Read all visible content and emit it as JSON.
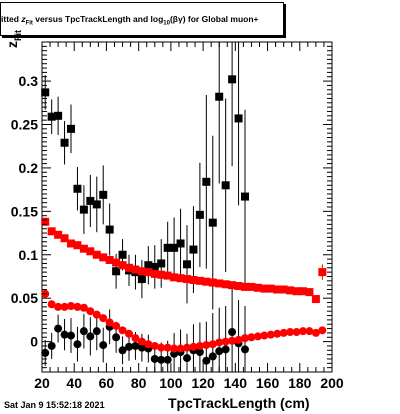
{
  "chart_data": {
    "type": "scatter",
    "title": "itted  z versus TpcTrackLength and log10(βγ) for Global muon+",
    "title_parts": {
      "pre": "itted  ",
      "z": "z",
      "z_sub": "Fit",
      "mid": " versus TpcTrackLength and log",
      "log_sub": "10",
      "post": "(βγ) for Global muon+"
    },
    "xlabel": "TpcTrackLength (cm)",
    "ylabel": "z",
    "ylabel_sub": "Fit",
    "xlim": [
      20,
      200
    ],
    "ylim": [
      -0.035,
      0.345
    ],
    "xticks": [
      20,
      40,
      60,
      80,
      100,
      120,
      140,
      160,
      180,
      200
    ],
    "yticks": [
      0,
      0.05,
      0.1,
      0.15,
      0.2,
      0.25,
      0.3
    ],
    "ytick_labels": [
      "0",
      "0.05",
      "0.1",
      "0.15",
      "0.2",
      "0.25",
      "0.3"
    ],
    "grid": false,
    "series": [
      {
        "color": "#000000",
        "points": [
          {
            "x": 22,
            "y": 0.287,
            "err": 0.02
          },
          {
            "x": 26,
            "y": 0.259,
            "err": 0.02
          },
          {
            "x": 30,
            "y": 0.26,
            "err": 0.022
          },
          {
            "x": 34,
            "y": 0.229,
            "err": 0.025
          },
          {
            "x": 38,
            "y": 0.245,
            "err": 0.028
          },
          {
            "x": 42,
            "y": 0.176,
            "err": 0.025
          },
          {
            "x": 46,
            "y": 0.152,
            "err": 0.028
          },
          {
            "x": 50,
            "y": 0.162,
            "err": 0.03
          },
          {
            "x": 54,
            "y": 0.158,
            "err": 0.032
          },
          {
            "x": 58,
            "y": 0.169,
            "err": 0.034
          },
          {
            "x": 62,
            "y": 0.129,
            "err": 0.03
          },
          {
            "x": 66,
            "y": 0.081,
            "err": 0.02
          },
          {
            "x": 70,
            "y": 0.1,
            "err": 0.018
          },
          {
            "x": 74,
            "y": 0.082,
            "err": 0.018
          },
          {
            "x": 78,
            "y": 0.08,
            "err": 0.02
          },
          {
            "x": 82,
            "y": 0.072,
            "err": 0.022
          },
          {
            "x": 86,
            "y": 0.088,
            "err": 0.022
          },
          {
            "x": 90,
            "y": 0.086,
            "err": 0.025
          },
          {
            "x": 94,
            "y": 0.09,
            "err": 0.028
          },
          {
            "x": 98,
            "y": 0.108,
            "err": 0.03
          },
          {
            "x": 102,
            "y": 0.108,
            "err": 0.035
          },
          {
            "x": 106,
            "y": 0.113,
            "err": 0.04
          },
          {
            "x": 110,
            "y": 0.089,
            "err": 0.045
          },
          {
            "x": 114,
            "y": 0.106,
            "err": 0.05
          },
          {
            "x": 118,
            "y": 0.146,
            "err": 0.06
          },
          {
            "x": 122,
            "y": 0.184,
            "err": 0.1
          },
          {
            "x": 126,
            "y": 0.137,
            "err": 0.1
          },
          {
            "x": 130,
            "y": 0.282,
            "err": 0.1
          },
          {
            "x": 134,
            "y": 0.18,
            "err": 0.1
          },
          {
            "x": 138,
            "y": 0.302,
            "err": 0.1
          },
          {
            "x": 142,
            "y": 0.257,
            "err": 0.1
          },
          {
            "x": 146,
            "y": 0.167,
            "err": 0.1
          }
        ]
      },
      {
        "color": "#000000",
        "points": [
          {
            "x": 22,
            "y": -0.013,
            "err": 0.015
          },
          {
            "x": 26,
            "y": -0.005,
            "err": 0.015
          },
          {
            "x": 30,
            "y": 0.015,
            "err": 0.016
          },
          {
            "x": 34,
            "y": 0.008,
            "err": 0.018
          },
          {
            "x": 38,
            "y": 0.007,
            "err": 0.02
          },
          {
            "x": 42,
            "y": -0.003,
            "err": 0.02
          },
          {
            "x": 46,
            "y": 0.012,
            "err": 0.02
          },
          {
            "x": 50,
            "y": 0.006,
            "err": 0.022
          },
          {
            "x": 54,
            "y": 0.012,
            "err": 0.022
          },
          {
            "x": 58,
            "y": -0.004,
            "err": 0.02
          },
          {
            "x": 62,
            "y": 0.017,
            "err": 0.02
          },
          {
            "x": 66,
            "y": 0.005,
            "err": 0.018
          },
          {
            "x": 70,
            "y": -0.01,
            "err": 0.016
          },
          {
            "x": 74,
            "y": -0.006,
            "err": 0.016
          },
          {
            "x": 78,
            "y": -0.005,
            "err": 0.016
          },
          {
            "x": 82,
            "y": -0.007,
            "err": 0.016
          },
          {
            "x": 86,
            "y": -0.008,
            "err": 0.016
          },
          {
            "x": 90,
            "y": -0.02,
            "err": 0.018
          },
          {
            "x": 94,
            "y": -0.021,
            "err": 0.02
          },
          {
            "x": 98,
            "y": -0.021,
            "err": 0.022
          },
          {
            "x": 102,
            "y": -0.014,
            "err": 0.024
          },
          {
            "x": 106,
            "y": -0.012,
            "err": 0.026
          },
          {
            "x": 110,
            "y": -0.019,
            "err": 0.028
          },
          {
            "x": 114,
            "y": -0.01,
            "err": 0.03
          },
          {
            "x": 118,
            "y": -0.012,
            "err": 0.034
          },
          {
            "x": 122,
            "y": -0.022,
            "err": 0.045
          },
          {
            "x": 126,
            "y": -0.017,
            "err": 0.05
          },
          {
            "x": 130,
            "y": -0.011,
            "err": 0.05
          },
          {
            "x": 134,
            "y": -0.009,
            "err": 0.05
          },
          {
            "x": 138,
            "y": 0.011,
            "err": 0.05
          },
          {
            "x": 142,
            "y": -0.002,
            "err": 0.05
          },
          {
            "x": 146,
            "y": -0.009,
            "err": 0.05
          }
        ]
      },
      {
        "color": "#ff0000",
        "points": [
          {
            "x": 22,
            "y": 0.138
          },
          {
            "x": 26,
            "y": 0.127
          },
          {
            "x": 30,
            "y": 0.123
          },
          {
            "x": 34,
            "y": 0.119
          },
          {
            "x": 38,
            "y": 0.113
          },
          {
            "x": 42,
            "y": 0.111
          },
          {
            "x": 46,
            "y": 0.107
          },
          {
            "x": 50,
            "y": 0.104
          },
          {
            "x": 54,
            "y": 0.1
          },
          {
            "x": 58,
            "y": 0.097
          },
          {
            "x": 62,
            "y": 0.094
          },
          {
            "x": 66,
            "y": 0.091
          },
          {
            "x": 70,
            "y": 0.088
          },
          {
            "x": 74,
            "y": 0.085
          },
          {
            "x": 78,
            "y": 0.083
          },
          {
            "x": 82,
            "y": 0.081
          },
          {
            "x": 86,
            "y": 0.08
          },
          {
            "x": 90,
            "y": 0.078
          },
          {
            "x": 94,
            "y": 0.077
          },
          {
            "x": 98,
            "y": 0.076
          },
          {
            "x": 102,
            "y": 0.074
          },
          {
            "x": 106,
            "y": 0.073
          },
          {
            "x": 110,
            "y": 0.072
          },
          {
            "x": 114,
            "y": 0.071
          },
          {
            "x": 118,
            "y": 0.07
          },
          {
            "x": 122,
            "y": 0.069
          },
          {
            "x": 126,
            "y": 0.068
          },
          {
            "x": 130,
            "y": 0.067
          },
          {
            "x": 134,
            "y": 0.066
          },
          {
            "x": 138,
            "y": 0.065
          },
          {
            "x": 142,
            "y": 0.064
          },
          {
            "x": 146,
            "y": 0.063
          },
          {
            "x": 150,
            "y": 0.063
          },
          {
            "x": 154,
            "y": 0.062
          },
          {
            "x": 158,
            "y": 0.061
          },
          {
            "x": 162,
            "y": 0.061
          },
          {
            "x": 166,
            "y": 0.06
          },
          {
            "x": 170,
            "y": 0.06
          },
          {
            "x": 174,
            "y": 0.059
          },
          {
            "x": 178,
            "y": 0.058
          },
          {
            "x": 182,
            "y": 0.058
          },
          {
            "x": 186,
            "y": 0.057
          },
          {
            "x": 190,
            "y": 0.049
          },
          {
            "x": 194,
            "y": 0.08,
            "err": 0.009
          }
        ]
      },
      {
        "color": "#ff0000",
        "points": [
          {
            "x": 22,
            "y": 0.055
          },
          {
            "x": 26,
            "y": 0.043
          },
          {
            "x": 30,
            "y": 0.04
          },
          {
            "x": 34,
            "y": 0.04
          },
          {
            "x": 38,
            "y": 0.041
          },
          {
            "x": 42,
            "y": 0.04
          },
          {
            "x": 46,
            "y": 0.039
          },
          {
            "x": 50,
            "y": 0.035
          },
          {
            "x": 54,
            "y": 0.031
          },
          {
            "x": 58,
            "y": 0.027
          },
          {
            "x": 62,
            "y": 0.022
          },
          {
            "x": 66,
            "y": 0.018
          },
          {
            "x": 70,
            "y": 0.013
          },
          {
            "x": 74,
            "y": 0.009
          },
          {
            "x": 78,
            "y": 0.004
          },
          {
            "x": 82,
            "y": 0.0
          },
          {
            "x": 86,
            "y": -0.003
          },
          {
            "x": 90,
            "y": -0.005
          },
          {
            "x": 94,
            "y": -0.007
          },
          {
            "x": 98,
            "y": -0.007
          },
          {
            "x": 102,
            "y": -0.008
          },
          {
            "x": 106,
            "y": -0.008
          },
          {
            "x": 110,
            "y": -0.007
          },
          {
            "x": 114,
            "y": -0.006
          },
          {
            "x": 118,
            "y": -0.005
          },
          {
            "x": 122,
            "y": -0.004
          },
          {
            "x": 126,
            "y": -0.003
          },
          {
            "x": 130,
            "y": -0.001
          },
          {
            "x": 134,
            "y": 0.0
          },
          {
            "x": 138,
            "y": 0.001
          },
          {
            "x": 142,
            "y": 0.002
          },
          {
            "x": 146,
            "y": 0.004
          },
          {
            "x": 150,
            "y": 0.005
          },
          {
            "x": 154,
            "y": 0.006
          },
          {
            "x": 158,
            "y": 0.007
          },
          {
            "x": 162,
            "y": 0.008
          },
          {
            "x": 166,
            "y": 0.009
          },
          {
            "x": 170,
            "y": 0.01
          },
          {
            "x": 174,
            "y": 0.011
          },
          {
            "x": 178,
            "y": 0.011
          },
          {
            "x": 182,
            "y": 0.012
          },
          {
            "x": 186,
            "y": 0.012
          },
          {
            "x": 190,
            "y": 0.01
          },
          {
            "x": 194,
            "y": 0.013
          }
        ]
      }
    ]
  },
  "footer": {
    "date": "Sat Jan  9 15:52:18 2021"
  }
}
